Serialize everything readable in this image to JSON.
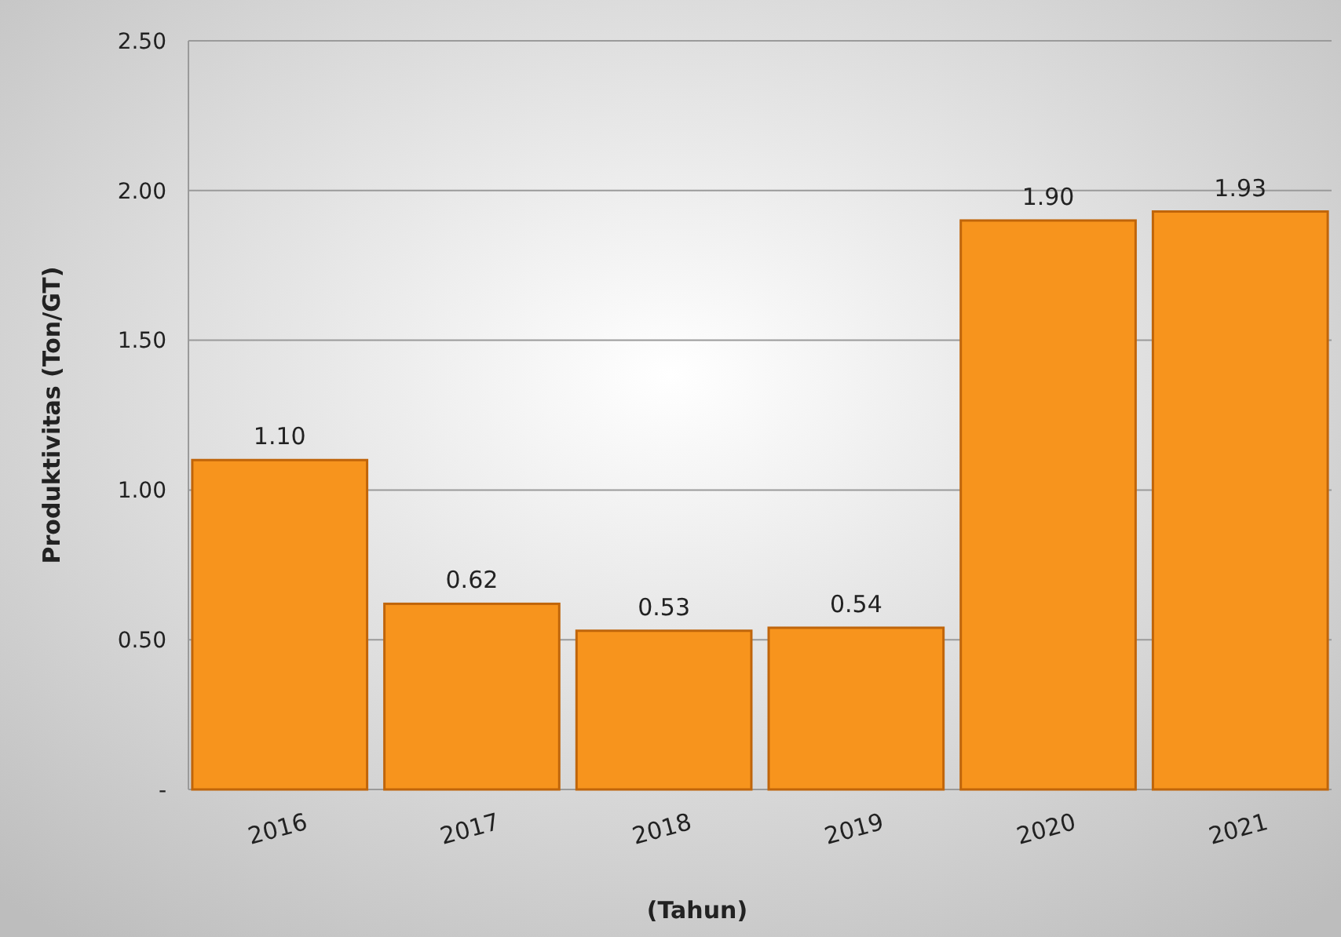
{
  "chart_data": {
    "type": "bar",
    "xlabel": "(Tahun)",
    "ylabel": "Produktivitas (Ton/GT)",
    "categories": [
      "2016",
      "2017",
      "2018",
      "2019",
      "2020",
      "2021"
    ],
    "values": [
      1.1,
      0.62,
      0.53,
      0.54,
      1.9,
      1.93
    ],
    "value_labels": [
      "1.10",
      "0.62",
      "0.53",
      "0.54",
      "1.90",
      "1.93"
    ],
    "color": "#f7941d",
    "ylim": [
      0,
      2.5
    ],
    "yticks": [
      {
        "value": 0,
        "label": "-"
      },
      {
        "value": 0.5,
        "label": "0.50"
      },
      {
        "value": 1,
        "label": "1.00"
      },
      {
        "value": 1.5,
        "label": "1.50"
      },
      {
        "value": 2,
        "label": "2.00"
      },
      {
        "value": 2.5,
        "label": "2.50"
      }
    ],
    "grid": "y"
  }
}
